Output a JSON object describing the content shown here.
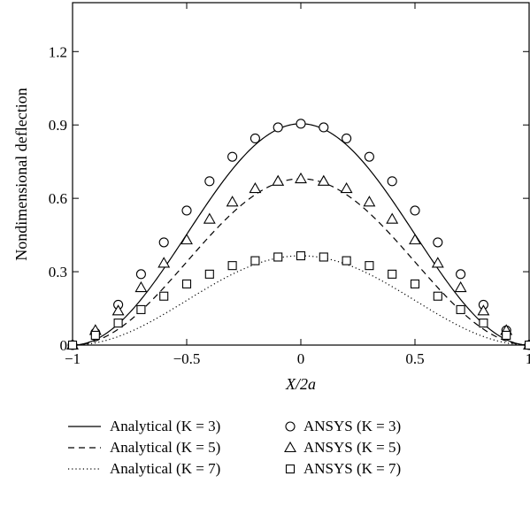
{
  "chart_data": {
    "type": "line",
    "xlabel": "X/2a",
    "ylabel": "Nondimensional deflection",
    "xlim": [
      -1,
      1
    ],
    "ylim": [
      0,
      1.4
    ],
    "x_ticks": [
      -1,
      -0.5,
      0,
      0.5,
      1
    ],
    "x_tick_labels": [
      "−1",
      "−0.5",
      "0",
      "0.5",
      "1"
    ],
    "y_ticks": [
      0,
      0.3,
      0.6,
      0.9,
      1.2
    ],
    "y_tick_labels": [
      "0",
      "0.3",
      "0.6",
      "0.9",
      "1.2"
    ],
    "grid": false,
    "legend_position": "bottom",
    "analytical_series": [
      {
        "name": "Analytical (K = 3)",
        "line_style": "solid",
        "amplitude": 0.905
      },
      {
        "name": "Analytical (K = 5)",
        "line_style": "dashed",
        "amplitude": 0.68
      },
      {
        "name": "Analytical (K = 7)",
        "line_style": "dotted",
        "amplitude": 0.365
      }
    ],
    "ansys_series": [
      {
        "name": "ANSYS (K = 3)",
        "marker": "circle",
        "x": [
          -1,
          -0.9,
          -0.8,
          -0.7,
          -0.6,
          -0.5,
          -0.4,
          -0.3,
          -0.2,
          -0.1,
          0,
          0.1,
          0.2,
          0.3,
          0.4,
          0.5,
          0.6,
          0.7,
          0.8,
          0.9,
          1
        ],
        "y": [
          0.0,
          0.05,
          0.165,
          0.29,
          0.42,
          0.55,
          0.67,
          0.77,
          0.845,
          0.89,
          0.905,
          0.89,
          0.845,
          0.77,
          0.67,
          0.55,
          0.42,
          0.29,
          0.165,
          0.06,
          0.0
        ]
      },
      {
        "name": "ANSYS (K = 5)",
        "marker": "triangle",
        "x": [
          -1,
          -0.9,
          -0.8,
          -0.7,
          -0.6,
          -0.5,
          -0.4,
          -0.3,
          -0.2,
          -0.1,
          0,
          0.1,
          0.2,
          0.3,
          0.4,
          0.5,
          0.6,
          0.7,
          0.8,
          0.9,
          1
        ],
        "y": [
          0.0,
          0.06,
          0.14,
          0.235,
          0.335,
          0.43,
          0.515,
          0.585,
          0.64,
          0.67,
          0.68,
          0.67,
          0.64,
          0.585,
          0.515,
          0.43,
          0.335,
          0.235,
          0.14,
          0.06,
          0.0
        ]
      },
      {
        "name": "ANSYS (K = 7)",
        "marker": "square",
        "x": [
          -1,
          -0.9,
          -0.8,
          -0.7,
          -0.6,
          -0.5,
          -0.4,
          -0.3,
          -0.2,
          -0.1,
          0,
          0.1,
          0.2,
          0.3,
          0.4,
          0.5,
          0.6,
          0.7,
          0.8,
          0.9,
          1
        ],
        "y": [
          0.0,
          0.04,
          0.09,
          0.145,
          0.2,
          0.25,
          0.29,
          0.325,
          0.345,
          0.36,
          0.365,
          0.36,
          0.345,
          0.325,
          0.29,
          0.25,
          0.2,
          0.145,
          0.09,
          0.04,
          0.0
        ]
      }
    ]
  }
}
